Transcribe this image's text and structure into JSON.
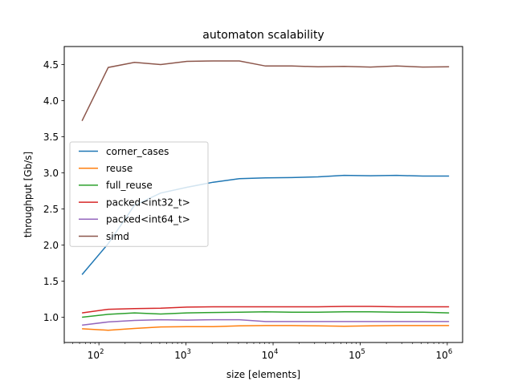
{
  "chart_data": {
    "type": "line",
    "title": "automaton scalability",
    "xlabel": "size [elements]",
    "ylabel": "throughput [Gb/s]",
    "xscale": "log",
    "xlim": [
      40,
      1500000
    ],
    "ylim": [
      0.65,
      4.75
    ],
    "yticks": [
      1.0,
      1.5,
      2.0,
      2.5,
      3.0,
      3.5,
      4.0,
      4.5
    ],
    "ytick_labels": [
      "1.0",
      "1.5",
      "2.0",
      "2.5",
      "3.0",
      "3.5",
      "4.0",
      "4.5"
    ],
    "xticks": [
      100,
      1000,
      10000,
      100000,
      1000000
    ],
    "xtick_labels": [
      "10",
      "10",
      "10",
      "10",
      "10"
    ],
    "xtick_exponents": [
      "2",
      "3",
      "4",
      "5",
      "6"
    ],
    "legend_position": "center-left",
    "x": [
      64,
      128,
      256,
      512,
      1024,
      2048,
      4096,
      8192,
      16384,
      32768,
      65536,
      131072,
      262144,
      524288,
      1048576
    ],
    "series": [
      {
        "name": "corner_cases",
        "color": "#1f77b4",
        "values": [
          1.59,
          2.02,
          2.55,
          2.72,
          2.8,
          2.87,
          2.92,
          2.93,
          2.935,
          2.945,
          2.965,
          2.96,
          2.965,
          2.955,
          2.955
        ]
      },
      {
        "name": "reuse",
        "color": "#ff7f0e",
        "values": [
          0.84,
          0.82,
          0.845,
          0.865,
          0.87,
          0.87,
          0.88,
          0.885,
          0.885,
          0.88,
          0.875,
          0.88,
          0.885,
          0.885,
          0.885
        ]
      },
      {
        "name": "full_reuse",
        "color": "#2ca02c",
        "values": [
          1.0,
          1.04,
          1.06,
          1.045,
          1.06,
          1.065,
          1.07,
          1.075,
          1.07,
          1.07,
          1.075,
          1.075,
          1.07,
          1.07,
          1.06
        ]
      },
      {
        "name": "packed<int32_t>",
        "color": "#d62728",
        "values": [
          1.06,
          1.11,
          1.12,
          1.125,
          1.14,
          1.145,
          1.145,
          1.145,
          1.145,
          1.145,
          1.15,
          1.15,
          1.145,
          1.145,
          1.145
        ]
      },
      {
        "name": "packed<int64_t>",
        "color": "#9467bd",
        "values": [
          0.89,
          0.935,
          0.955,
          0.965,
          0.96,
          0.965,
          0.965,
          0.94,
          0.94,
          0.94,
          0.94,
          0.94,
          0.94,
          0.94,
          0.94
        ]
      },
      {
        "name": "simd",
        "color": "#8c564b",
        "values": [
          3.72,
          4.46,
          4.53,
          4.5,
          4.545,
          4.55,
          4.55,
          4.48,
          4.48,
          4.47,
          4.475,
          4.465,
          4.48,
          4.465,
          4.47
        ]
      }
    ]
  }
}
